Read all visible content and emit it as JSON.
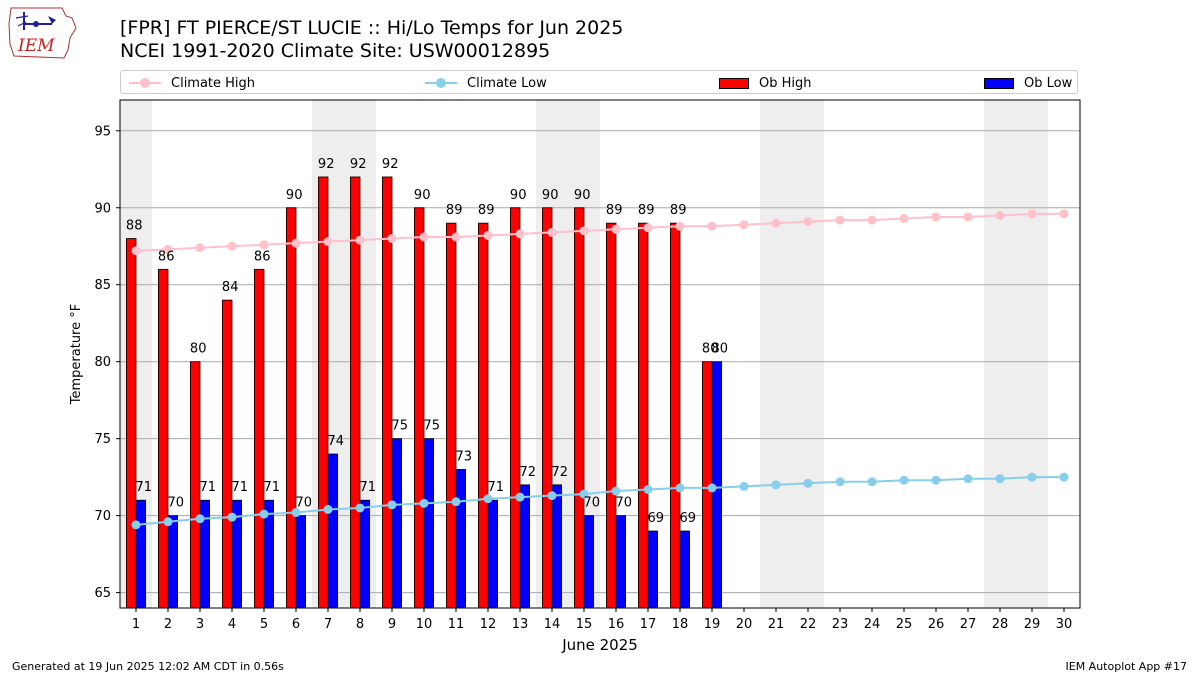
{
  "logo_text": "IEM",
  "title": {
    "line1": "[FPR] FT PIERCE/ST LUCIE :: Hi/Lo Temps for Jun 2025",
    "line2": "NCEI 1991-2020 Climate Site: USW00012895"
  },
  "footer": {
    "left": "Generated at 19 Jun 2025 12:02 AM CDT in 0.56s",
    "right": "IEM Autoplot App #17"
  },
  "legend": {
    "climate_high": "Climate High",
    "climate_low": "Climate Low",
    "ob_high": "Ob High",
    "ob_low": "Ob Low"
  },
  "colors": {
    "climate_high": "#ffc0cb",
    "climate_low": "#87ceeb",
    "ob_high": "#ff0000",
    "ob_low": "#0000ff",
    "weekend_band": "#eeeeee",
    "grid": "#aaaaaa"
  },
  "chart_data": {
    "type": "bar",
    "xlabel": "June 2025",
    "ylabel": "Temperature °F",
    "ylim": [
      64,
      97
    ],
    "yticks": [
      65,
      70,
      75,
      80,
      85,
      90,
      95
    ],
    "xlim": [
      0.5,
      30.5
    ],
    "days": [
      1,
      2,
      3,
      4,
      5,
      6,
      7,
      8,
      9,
      10,
      11,
      12,
      13,
      14,
      15,
      16,
      17,
      18,
      19,
      20,
      21,
      22,
      23,
      24,
      25,
      26,
      27,
      28,
      29,
      30
    ],
    "shaded_days": [
      1,
      7,
      8,
      14,
      15,
      21,
      22,
      28,
      29
    ],
    "grid": "horizontal",
    "legend_position": "top",
    "series": [
      {
        "name": "Ob High",
        "kind": "bar",
        "values": [
          88,
          86,
          80,
          84,
          86,
          90,
          92,
          92,
          92,
          90,
          89,
          89,
          90,
          90,
          90,
          89,
          89,
          89,
          80
        ]
      },
      {
        "name": "Ob Low",
        "kind": "bar",
        "values": [
          71,
          70,
          71,
          71,
          71,
          70,
          74,
          71,
          75,
          75,
          73,
          71,
          72,
          72,
          70,
          70,
          69,
          69,
          80
        ]
      },
      {
        "name": "Climate High",
        "kind": "line",
        "values": [
          87.2,
          87.3,
          87.4,
          87.5,
          87.6,
          87.7,
          87.8,
          87.9,
          88.0,
          88.1,
          88.1,
          88.2,
          88.3,
          88.4,
          88.5,
          88.6,
          88.7,
          88.8,
          88.8,
          88.9,
          89.0,
          89.1,
          89.2,
          89.2,
          89.3,
          89.4,
          89.4,
          89.5,
          89.6,
          89.6
        ]
      },
      {
        "name": "Climate Low",
        "kind": "line",
        "values": [
          69.4,
          69.6,
          69.8,
          69.9,
          70.1,
          70.2,
          70.4,
          70.5,
          70.7,
          70.8,
          70.9,
          71.1,
          71.2,
          71.3,
          71.4,
          71.6,
          71.7,
          71.8,
          71.8,
          71.9,
          72.0,
          72.1,
          72.2,
          72.2,
          72.3,
          72.3,
          72.4,
          72.4,
          72.5,
          72.5
        ]
      }
    ]
  }
}
